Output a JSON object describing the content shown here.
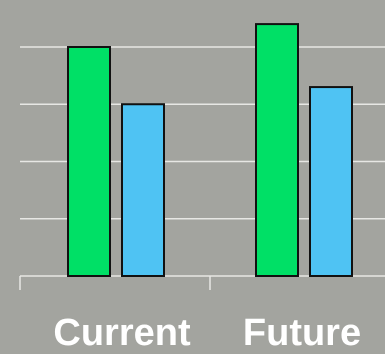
{
  "chart_data": {
    "type": "bar",
    "categories": [
      "Current",
      "Future"
    ],
    "series": [
      {
        "values": [
          4,
          4.4
        ]
      },
      {
        "values": [
          3,
          3.3
        ]
      }
    ],
    "ylim": [
      0,
      5
    ],
    "grid": true,
    "title": "",
    "xlabel": "",
    "ylabel": ""
  },
  "colors": {
    "background": "#a3a49f",
    "grid": "#e7e7e4",
    "series": [
      "#00e066",
      "#4fc3f3"
    ],
    "bar_outline": "#111111",
    "label": "#ffffff"
  }
}
